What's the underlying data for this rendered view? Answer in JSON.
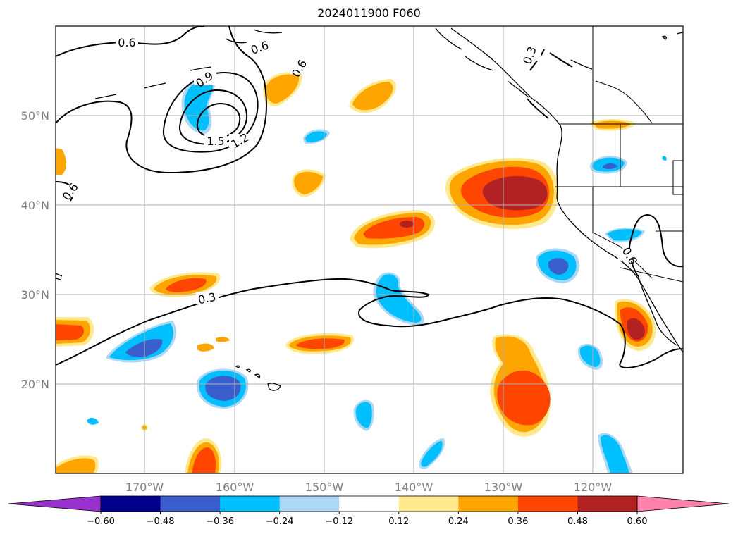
{
  "title": "2024011900 F060",
  "map": {
    "extent": {
      "lon": [
        -180,
        -110
      ],
      "lat": [
        10,
        60
      ]
    },
    "lon_ticks": [
      "170°W",
      "160°W",
      "150°W",
      "140°W",
      "130°W",
      "120°W"
    ],
    "lat_ticks": [
      "20°N",
      "30°N",
      "40°N",
      "50°N"
    ],
    "contour_labels": [
      "0.6",
      "0.9",
      "1.2",
      "1.5",
      "0.6",
      "0.6",
      "0.6",
      "0.3",
      "0.6",
      "0.3"
    ]
  },
  "colorbar": {
    "ticks": [
      "−0.60",
      "−0.48",
      "−0.36",
      "−0.24",
      "−0.12",
      "0.12",
      "0.24",
      "0.36",
      "0.48",
      "0.60"
    ],
    "colors": [
      "#9932cc",
      "#00008b",
      "#3a5fcd",
      "#00bfff",
      "#add8f5",
      "#ffffff",
      "#ffe98c",
      "#ffa500",
      "#ff4500",
      "#b22222",
      "#ff82ab"
    ]
  }
}
